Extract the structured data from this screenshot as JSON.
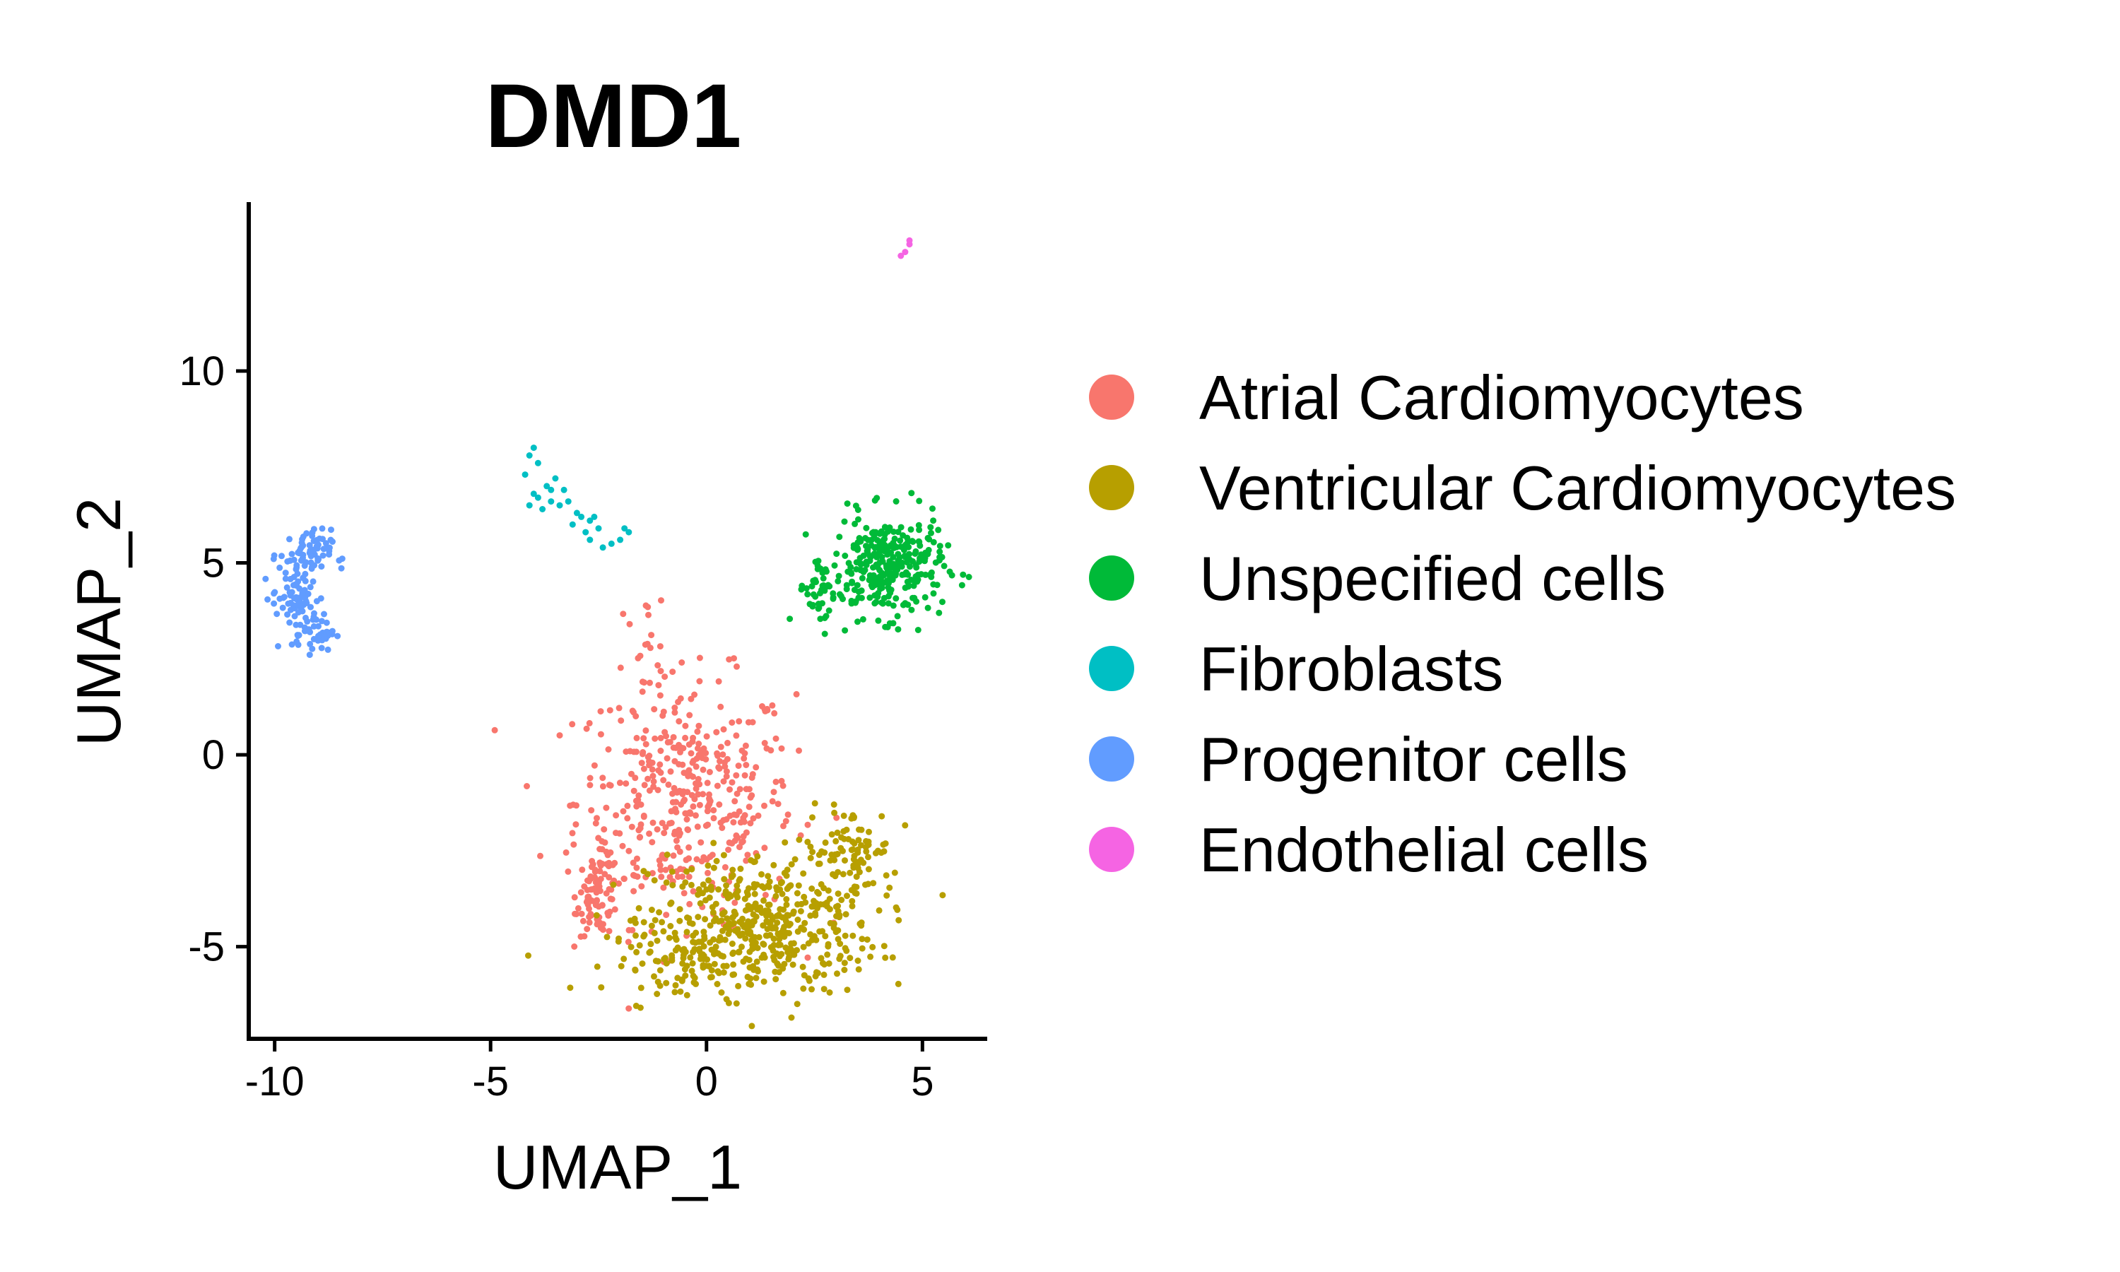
{
  "chart_data": {
    "type": "scatter",
    "title": "DMD1",
    "xlabel": "UMAP_1",
    "ylabel": "UMAP_2",
    "xlim": [
      -10.6,
      6.5
    ],
    "ylim": [
      -7.4,
      14.4
    ],
    "xticks": [
      -10,
      -5,
      0,
      5
    ],
    "yticks": [
      -5,
      0,
      5,
      10
    ],
    "xtick_labels": [
      "-10",
      "-5",
      "0",
      "5"
    ],
    "ytick_labels": [
      "-5",
      "0",
      "5",
      "10"
    ],
    "grid": false,
    "legend_position": "right",
    "series": [
      {
        "name": "Atrial Cardiomyocytes",
        "color": "#F8766D",
        "clusters": [
          {
            "cx": -0.5,
            "cy": -1.2,
            "rx": 2.3,
            "ry": 2.9,
            "n": 420
          },
          {
            "cx": -2.5,
            "cy": -3.6,
            "rx": 0.45,
            "ry": 1.0,
            "n": 90
          },
          {
            "cx": -1.5,
            "cy": 3.1,
            "rx": 0.6,
            "ry": 0.9,
            "n": 14
          }
        ]
      },
      {
        "name": "Ventricular Cardiomyocytes",
        "color": "#B79F00",
        "clusters": [
          {
            "cx": 1.3,
            "cy": -4.4,
            "rx": 2.4,
            "ry": 1.7,
            "n": 430
          },
          {
            "cx": 3.3,
            "cy": -2.5,
            "rx": 0.9,
            "ry": 1.0,
            "n": 80
          },
          {
            "cx": -0.2,
            "cy": -5.3,
            "rx": 1.9,
            "ry": 0.8,
            "n": 110
          }
        ]
      },
      {
        "name": "Unspecified cells",
        "color": "#00BA38",
        "clusters": [
          {
            "cx": 4.2,
            "cy": 4.9,
            "rx": 1.15,
            "ry": 1.2,
            "n": 300
          },
          {
            "cx": 2.7,
            "cy": 4.3,
            "rx": 0.55,
            "ry": 0.9,
            "n": 45
          }
        ]
      },
      {
        "name": "Fibroblasts",
        "color": "#00BFC4",
        "points": [
          [
            -4.0,
            8.0
          ],
          [
            -4.1,
            7.8
          ],
          [
            -3.9,
            7.6
          ],
          [
            -3.7,
            7.0
          ],
          [
            -4.0,
            6.8
          ],
          [
            -3.6,
            6.6
          ],
          [
            -3.4,
            6.5
          ],
          [
            -3.8,
            6.4
          ],
          [
            -3.2,
            6.6
          ],
          [
            -3.0,
            6.3
          ],
          [
            -2.9,
            6.2
          ],
          [
            -2.7,
            6.1
          ],
          [
            -2.5,
            5.9
          ],
          [
            -2.7,
            5.6
          ],
          [
            -2.4,
            5.4
          ],
          [
            -2.0,
            5.6
          ],
          [
            -1.8,
            5.8
          ],
          [
            -3.5,
            7.2
          ],
          [
            -4.2,
            7.3
          ],
          [
            -3.3,
            6.9
          ],
          [
            -2.8,
            5.8
          ],
          [
            -2.2,
            5.5
          ],
          [
            -3.1,
            6.0
          ],
          [
            -3.9,
            6.7
          ],
          [
            -2.6,
            6.2
          ],
          [
            -1.9,
            5.9
          ],
          [
            -3.6,
            6.9
          ],
          [
            -4.1,
            6.5
          ]
        ]
      },
      {
        "name": "Progenitor cells",
        "color": "#619CFF",
        "clusters": [
          {
            "cx": -9.3,
            "cy": 5.2,
            "rx": 0.55,
            "ry": 0.6,
            "n": 70
          },
          {
            "cx": -9.5,
            "cy": 4.1,
            "rx": 0.5,
            "ry": 0.55,
            "n": 60
          },
          {
            "cx": -9.1,
            "cy": 3.2,
            "rx": 0.45,
            "ry": 0.45,
            "n": 50
          }
        ]
      },
      {
        "name": "Endothelial cells",
        "color": "#F564E3",
        "points": [
          [
            4.7,
            13.3
          ],
          [
            4.6,
            13.1
          ],
          [
            4.5,
            13.0
          ],
          [
            4.7,
            13.4
          ]
        ]
      }
    ]
  }
}
